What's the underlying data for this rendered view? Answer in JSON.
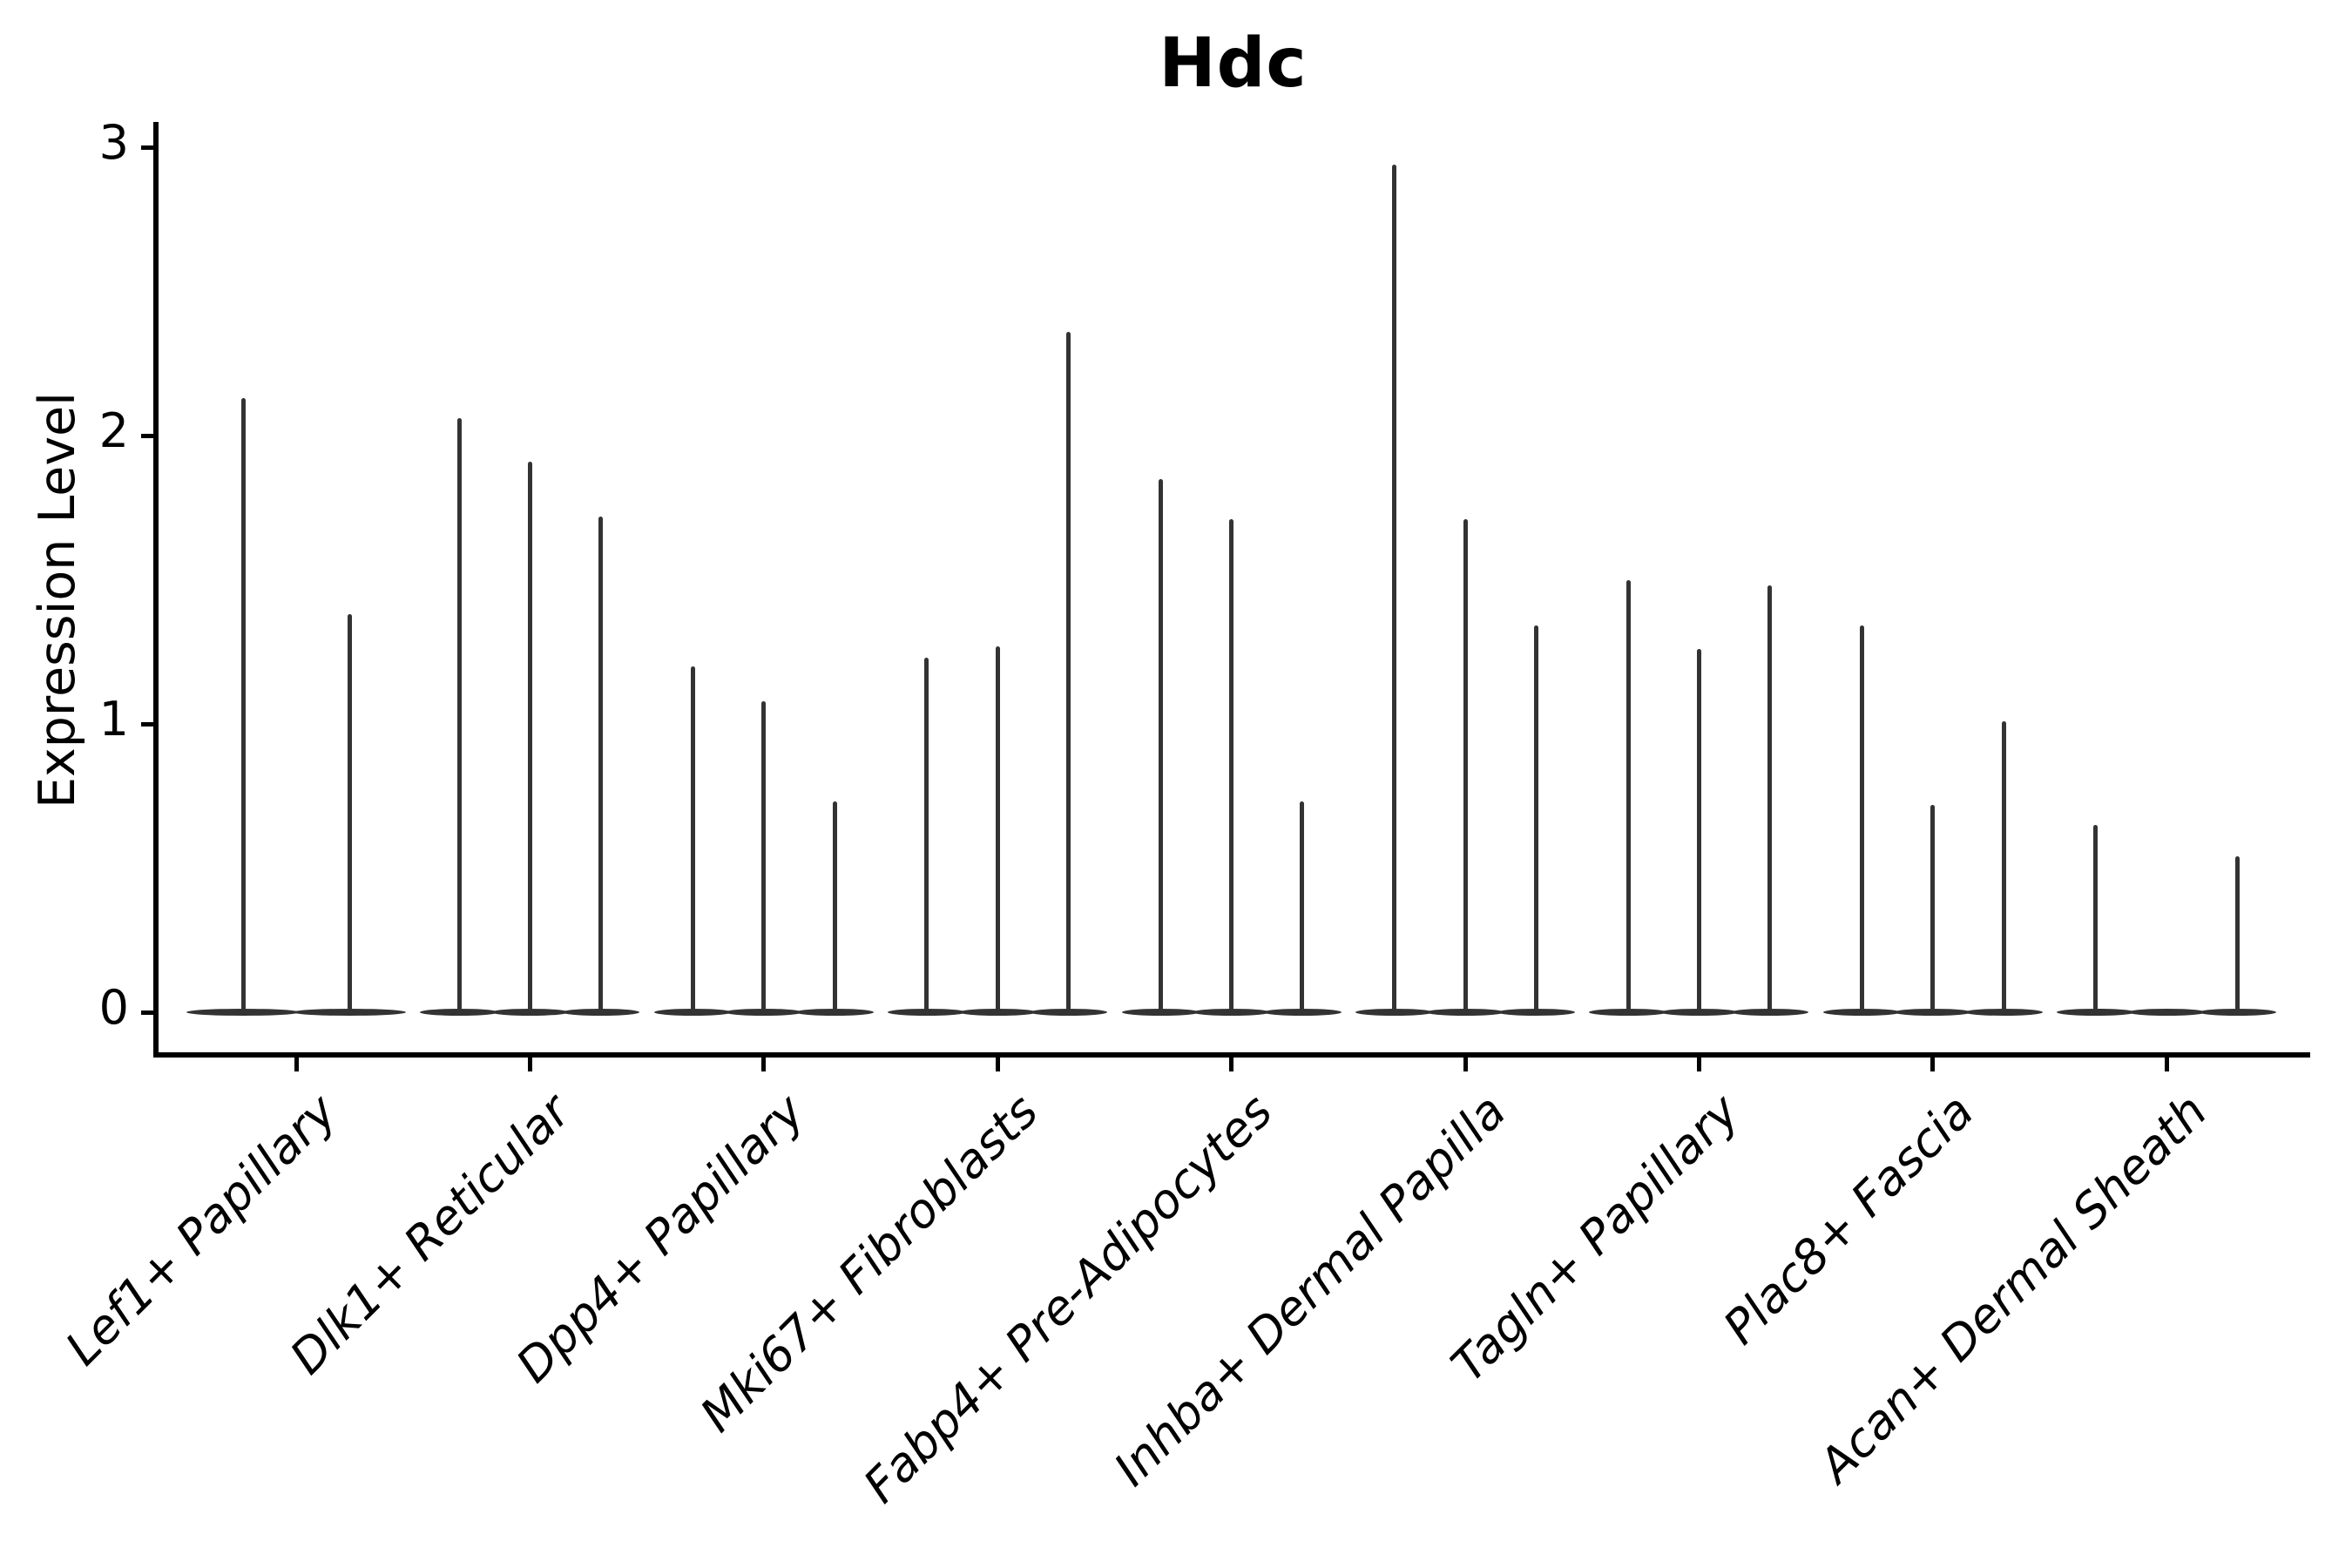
{
  "chart_data": {
    "type": "violin",
    "title": "Hdc",
    "xlabel": "",
    "ylabel": "Expression Level",
    "yticks": [
      0,
      1,
      2,
      3
    ],
    "ylim": [
      -0.15,
      3.09
    ],
    "grid": false,
    "legend_position": "none",
    "description": "Single-gene (Hdc) expression violin plot across dermal fibroblast subpopulations; each category contains multiple very thin violins collapsed at 0 with tall narrow spikes indicating maximum expression values.",
    "categories": [
      "Lef1+ Papillary",
      "Dlk1+ Reticular",
      "Dpp4+ Papillary",
      "Mki67+ Fibroblasts",
      "Fabp4+ Pre-Adipocytes",
      "Inhba+ Dermal Papilla",
      "Tagln+ Papillary",
      "Plac8+ Fascia",
      "Acan+ Dermal Sheath"
    ],
    "groups": [
      {
        "category": "Lef1+ Papillary",
        "violin_max_values": [
          2.13,
          1.38
        ]
      },
      {
        "category": "Dlk1+ Reticular",
        "violin_max_values": [
          2.06,
          1.91,
          1.72
        ]
      },
      {
        "category": "Dpp4+ Papillary",
        "violin_max_values": [
          1.2,
          1.08,
          0.73
        ]
      },
      {
        "category": "Mki67+ Fibroblasts",
        "violin_max_values": [
          1.23,
          1.27,
          2.36
        ]
      },
      {
        "category": "Fabp4+ Pre-Adipocytes",
        "violin_max_values": [
          1.85,
          1.71,
          0.73
        ]
      },
      {
        "category": "Inhba+ Dermal Papilla",
        "violin_max_values": [
          2.94,
          1.71,
          1.34
        ]
      },
      {
        "category": "Tagln+ Papillary",
        "violin_max_values": [
          1.5,
          1.26,
          1.48
        ]
      },
      {
        "category": "Plac8+ Fascia",
        "violin_max_values": [
          1.34,
          0.72,
          1.01
        ]
      },
      {
        "category": "Acan+ Dermal Sheath",
        "violin_max_values": [
          0.65,
          0.0,
          0.54
        ]
      }
    ],
    "colors": {
      "violin": "#333333",
      "axis": "#000000",
      "text": "#000000",
      "background": "#ffffff"
    }
  }
}
